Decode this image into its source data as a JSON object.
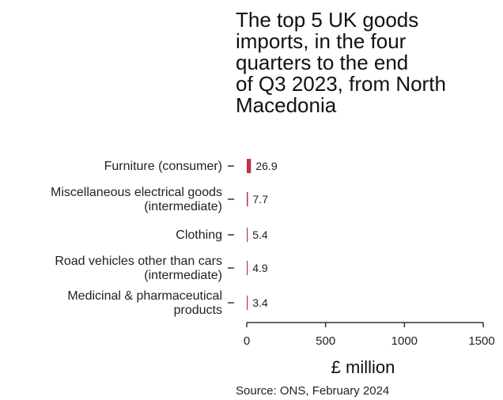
{
  "chart_data": {
    "type": "bar",
    "orientation": "horizontal",
    "title": "The top 5 UK goods\nimports, in the four\nquarters to the end\nof Q3 2023, from North\nMacedonia",
    "categories": [
      [
        "Furniture (consumer)"
      ],
      [
        "Miscellaneous electrical goods",
        "(intermediate)"
      ],
      [
        "Clothing"
      ],
      [
        "Road vehicles other than cars",
        "(intermediate)"
      ],
      [
        "Medicinal & pharmaceutical",
        "products"
      ]
    ],
    "values": [
      26.9,
      7.7,
      5.4,
      4.9,
      3.4
    ],
    "value_labels": [
      "26.9",
      "7.7",
      "5.4",
      "4.9",
      "3.4"
    ],
    "xlabel": "£ million",
    "ylabel": "",
    "xlim": [
      0,
      1500
    ],
    "xticks": [
      0,
      500,
      1000,
      1500
    ],
    "xtick_labels": [
      "0",
      "500",
      "1000",
      "1500"
    ],
    "grid": false,
    "bar_color": "#c0304f",
    "axis_color": "#333333",
    "source": "Source: ONS, February 2024"
  }
}
